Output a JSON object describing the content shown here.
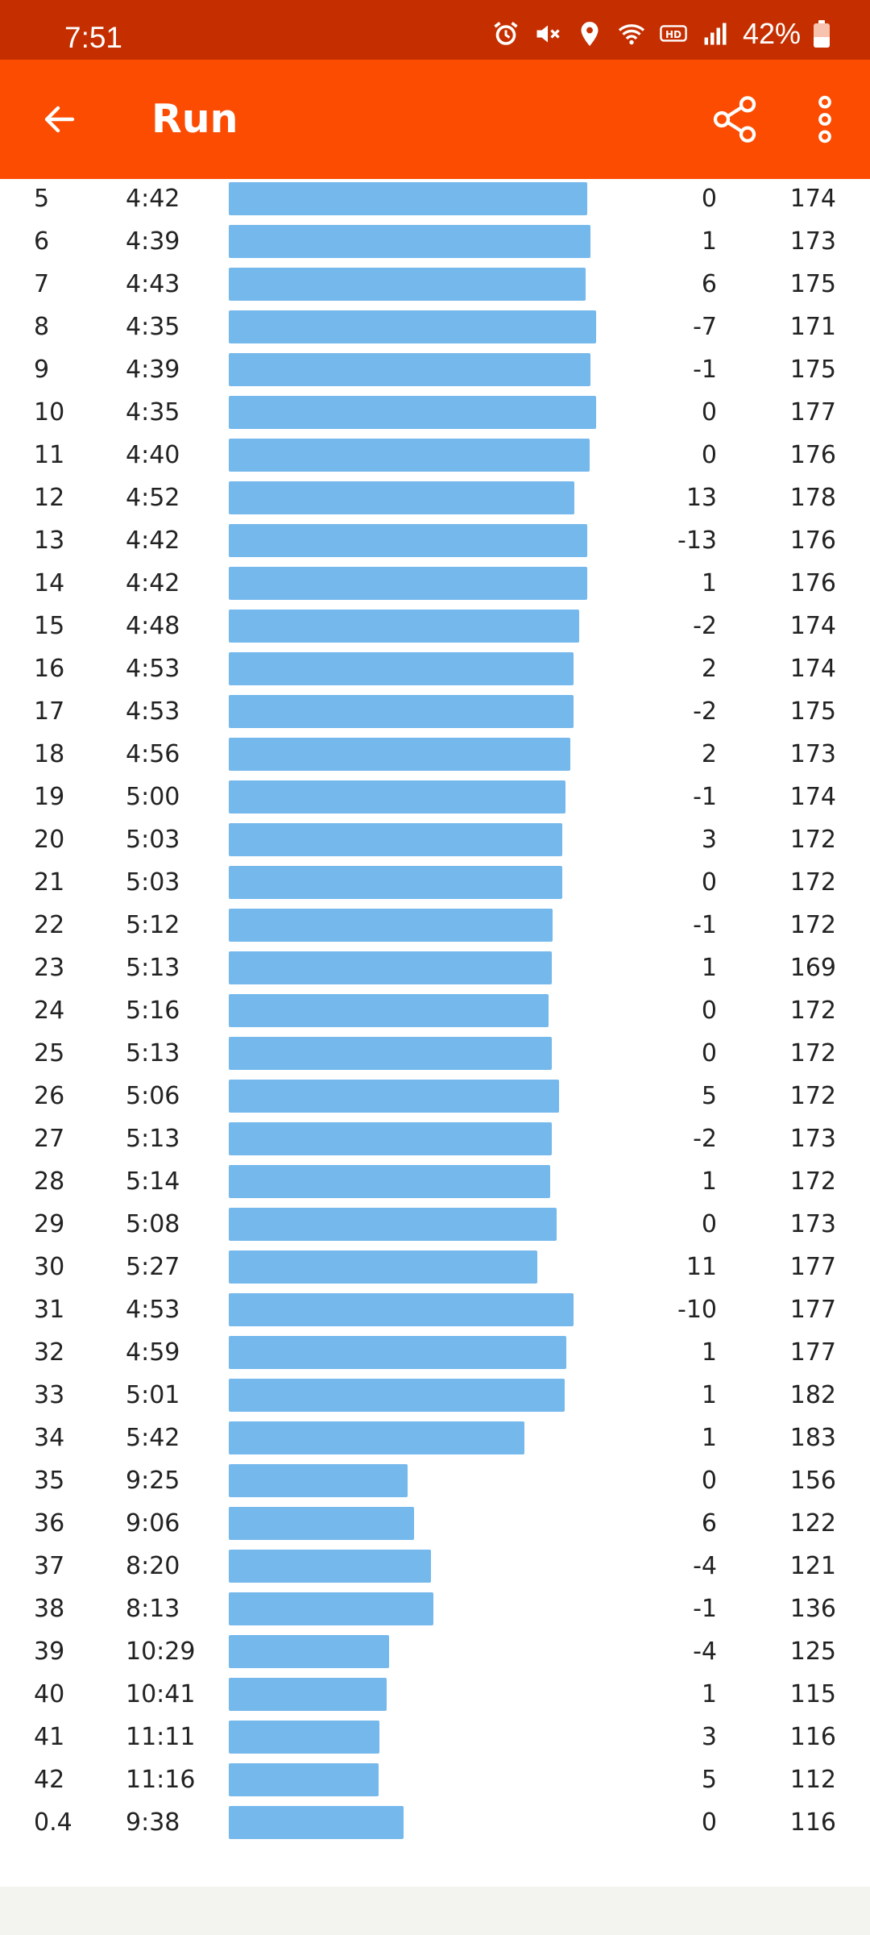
{
  "status_bar": {
    "time": "7:51",
    "battery": "42%",
    "battery_level": 0.42,
    "icons": [
      "alarm-icon",
      "mute-icon",
      "location-icon",
      "wifi-icon",
      "hd-voice-icon",
      "signal-icon"
    ]
  },
  "app_bar": {
    "title": "Run",
    "back_icon": "arrow-left-icon",
    "share_icon": "share-icon",
    "more_icon": "more-vertical-icon"
  },
  "colors": {
    "status_bar": "#c52f00",
    "app_bar": "#fc4c02",
    "pace_bar": "#74b8ec"
  },
  "chart_data": {
    "type": "bar",
    "orientation": "horizontal",
    "value_unit": "min/km",
    "categories": [
      "5",
      "6",
      "7",
      "8",
      "9",
      "10",
      "11",
      "12",
      "13",
      "14",
      "15",
      "16",
      "17",
      "18",
      "19",
      "20",
      "21",
      "22",
      "23",
      "24",
      "25",
      "26",
      "27",
      "28",
      "29",
      "30",
      "31",
      "32",
      "33",
      "34",
      "35",
      "36",
      "37",
      "38",
      "39",
      "40",
      "41",
      "42",
      "0.4"
    ],
    "pace": [
      "4:42",
      "4:39",
      "4:43",
      "4:35",
      "4:39",
      "4:35",
      "4:40",
      "4:52",
      "4:42",
      "4:42",
      "4:48",
      "4:53",
      "4:53",
      "4:56",
      "5:00",
      "5:03",
      "5:03",
      "5:12",
      "5:13",
      "5:16",
      "5:13",
      "5:06",
      "5:13",
      "5:14",
      "5:08",
      "5:27",
      "4:53",
      "4:59",
      "5:01",
      "5:42",
      "9:25",
      "9:06",
      "8:20",
      "8:13",
      "10:29",
      "10:41",
      "11:11",
      "11:16",
      "9:38"
    ],
    "elev": [
      "0",
      "1",
      "6",
      "-7",
      "-1",
      "0",
      "0",
      "13",
      "-13",
      "1",
      "-2",
      "2",
      "-2",
      "2",
      "-1",
      "3",
      "0",
      "-1",
      "1",
      "0",
      "0",
      "5",
      "-2",
      "1",
      "0",
      "11",
      "-10",
      "1",
      "1",
      "1",
      "0",
      "6",
      "-4",
      "-1",
      "-4",
      "1",
      "3",
      "5",
      "0"
    ],
    "hr": [
      "174",
      "173",
      "175",
      "171",
      "175",
      "177",
      "176",
      "178",
      "176",
      "176",
      "174",
      "174",
      "175",
      "173",
      "174",
      "172",
      "172",
      "172",
      "169",
      "172",
      "172",
      "172",
      "173",
      "172",
      "173",
      "177",
      "177",
      "177",
      "182",
      "183",
      "156",
      "122",
      "121",
      "136",
      "125",
      "115",
      "116",
      "112",
      "116"
    ]
  }
}
